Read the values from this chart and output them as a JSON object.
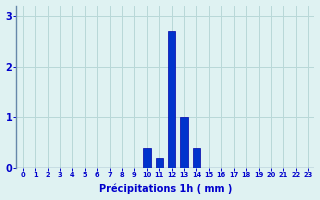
{
  "hours": [
    0,
    1,
    2,
    3,
    4,
    5,
    6,
    7,
    8,
    9,
    10,
    11,
    12,
    13,
    14,
    15,
    16,
    17,
    18,
    19,
    20,
    21,
    22,
    23
  ],
  "values": [
    0,
    0,
    0,
    0,
    0,
    0,
    0,
    0,
    0,
    0,
    0.4,
    0.2,
    2.7,
    1.0,
    0.4,
    0,
    0,
    0,
    0,
    0,
    0,
    0,
    0,
    0
  ],
  "bar_color": "#0033cc",
  "bar_edge_color": "#0000aa",
  "background_color": "#dff2f2",
  "grid_color": "#b8d8d8",
  "axis_color": "#6688aa",
  "xlabel": "Précipitations 1h ( mm )",
  "xlabel_color": "#0000cc",
  "tick_color": "#0000cc",
  "ylim": [
    0,
    3.2
  ],
  "yticks": [
    0,
    1,
    2,
    3
  ],
  "xlim": [
    -0.5,
    23.5
  ],
  "bar_width": 0.6,
  "xtick_fontsize": 4.8,
  "ytick_fontsize": 7,
  "xlabel_fontsize": 7
}
